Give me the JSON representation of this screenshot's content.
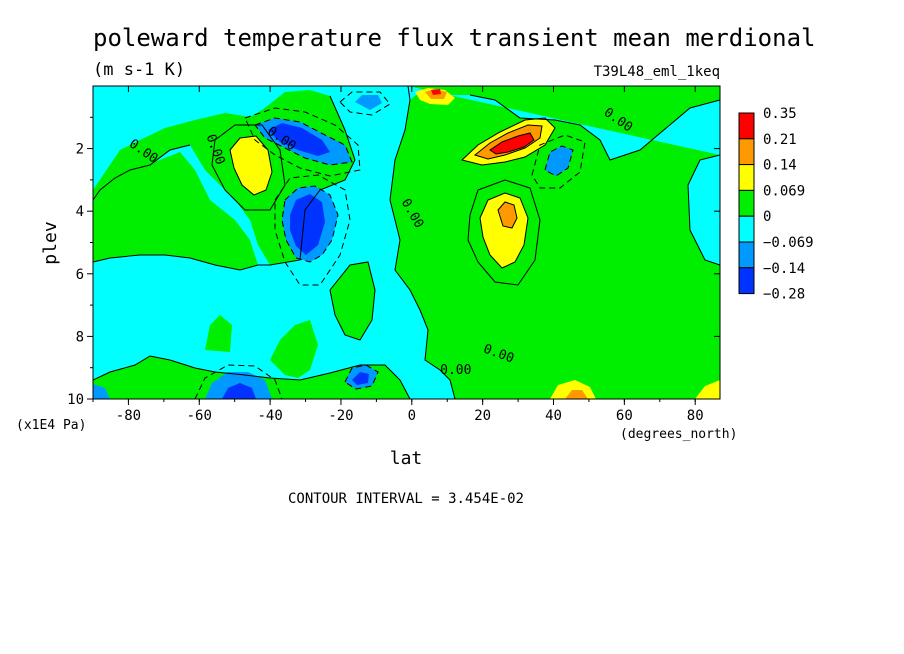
{
  "chart_data": {
    "type": "heatmap",
    "title": "poleward temperature flux transient mean merdional",
    "subtitle": "(m s-1 K)",
    "run_label": "T39L48_eml_1keq",
    "xlabel": "lat",
    "x_units": "(degrees_north)",
    "ylabel": "plev",
    "y_units": "(x1E4 Pa)",
    "xlim": [
      -90,
      87
    ],
    "ylim": [
      0,
      10
    ],
    "y_axis_inverted": true,
    "x_tick_labels": [
      "-80",
      "-60",
      "-40",
      "-20",
      "0",
      "20",
      "40",
      "60",
      "80"
    ],
    "y_tick_labels": [
      "2",
      "4",
      "6",
      "8",
      "10"
    ],
    "contour_interval_text": "CONTOUR INTERVAL = 3.454E-02",
    "contour_labels": [
      "0.00",
      "0.00",
      "0.00",
      "0.00",
      "0.00",
      "0.00",
      "0.00"
    ],
    "colorbar_labels": [
      "0.35",
      "0.21",
      "0.14",
      "0.069",
      "0",
      "−0.069",
      "−0.14",
      "−0.28"
    ],
    "colorbar_colors": [
      "#ff0000",
      "#ff9900",
      "#ffff00",
      "#00ee00",
      "#00ffff",
      "#0099ff",
      "#0033ff"
    ],
    "fill_colors": {
      "red": "#ff0000",
      "orange": "#ff9900",
      "yellow": "#ffff00",
      "green": "#00ee00",
      "cyan": "#00ffff",
      "midblue": "#0099ff",
      "blue": "#0033ff"
    },
    "features": [
      {
        "kind": "max",
        "lat": 30,
        "plev": 2.0,
        "level": "red"
      },
      {
        "kind": "max",
        "lat": 28,
        "plev": 4.0,
        "level": "orange"
      },
      {
        "kind": "max",
        "lat": -42,
        "plev": 2.4,
        "level": "yellow"
      },
      {
        "kind": "min",
        "lat": -30,
        "plev": 4.3,
        "level": "blue"
      },
      {
        "kind": "min",
        "lat": -30,
        "plev": 1.8,
        "level": "blue"
      },
      {
        "kind": "min",
        "lat": -48,
        "plev": 9.8,
        "level": "blue"
      }
    ]
  }
}
